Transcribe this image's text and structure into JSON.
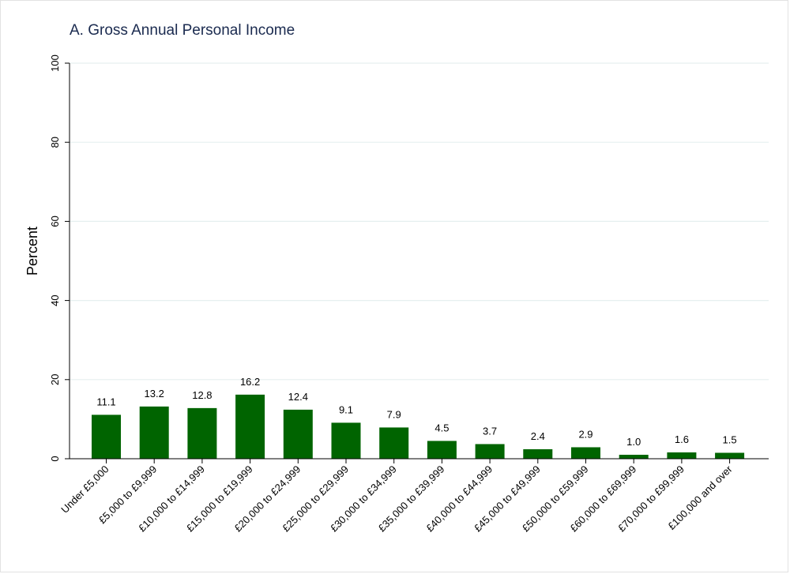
{
  "chart_data": {
    "type": "bar",
    "title": "A. Gross Annual Personal Income",
    "xlabel": "",
    "ylabel": "Percent",
    "ylim": [
      0,
      100
    ],
    "yticks": [
      0,
      20,
      40,
      60,
      80,
      100
    ],
    "grid": true,
    "bar_color": "#006400",
    "categories": [
      "Under £5,000",
      "£5,000 to £9,999",
      "£10,000 to £14,999",
      "£15,000 to £19,999",
      "£20,000 to £24,999",
      "£25,000 to £29,999",
      "£30,000 to £34,999",
      "£35,000 to £39,999",
      "£40,000 to £44,999",
      "£45,000 to £49,999",
      "£50,000 to £59,999",
      "£60,000 to £69,999",
      "£70,000 to £99,999",
      "£100,000 and over"
    ],
    "values": [
      11.1,
      13.2,
      12.8,
      16.2,
      12.4,
      9.1,
      7.9,
      4.5,
      3.7,
      2.4,
      2.9,
      1.0,
      1.6,
      1.5
    ],
    "value_labels": [
      "11.1",
      "13.2",
      "12.8",
      "16.2",
      "12.4",
      "9.1",
      "7.9",
      "4.5",
      "3.7",
      "2.4",
      "2.9",
      "1.0",
      "1.6",
      "1.5"
    ]
  }
}
